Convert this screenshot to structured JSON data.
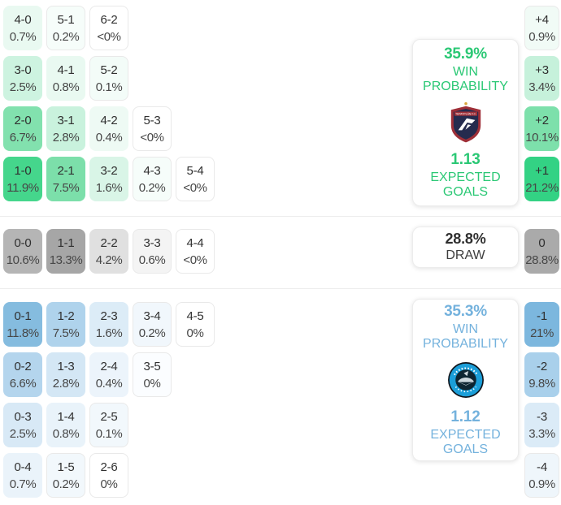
{
  "chart_data": {
    "type": "heatmap",
    "description": "Correct score probability matrix with win probability, expected goals and goal-difference distribution",
    "sections": {
      "home": {
        "win_pct": "35.9%",
        "win_label": "WIN PROBABILITY",
        "xg": "1.13",
        "xg_label": "EXPECTED GOALS",
        "rows": [
          [
            {
              "s": "4-0",
              "p": "0.7%",
              "bg": "#e9f9f1"
            },
            {
              "s": "5-1",
              "p": "0.2%",
              "bg": "#f6fdfa",
              "bd": 1
            },
            {
              "s": "6-2",
              "p": "<0%",
              "bg": "#ffffff",
              "bd": 1
            }
          ],
          [
            {
              "s": "3-0",
              "p": "2.5%",
              "bg": "#cdf3e0"
            },
            {
              "s": "4-1",
              "p": "0.8%",
              "bg": "#e9f9f1"
            },
            {
              "s": "5-2",
              "p": "0.1%",
              "bg": "#f3fcf8",
              "bd": 1
            }
          ],
          [
            {
              "s": "2-0",
              "p": "6.7%",
              "bg": "#82e1ae"
            },
            {
              "s": "3-1",
              "p": "2.8%",
              "bg": "#c9f2dd"
            },
            {
              "s": "4-2",
              "p": "0.4%",
              "bg": "#eefaf4"
            },
            {
              "s": "5-3",
              "p": "<0%",
              "bg": "#ffffff",
              "bd": 1
            }
          ],
          [
            {
              "s": "1-0",
              "p": "11.9%",
              "bg": "#45d68c"
            },
            {
              "s": "2-1",
              "p": "7.5%",
              "bg": "#7cdfaa"
            },
            {
              "s": "3-2",
              "p": "1.6%",
              "bg": "#d9f5e7"
            },
            {
              "s": "4-3",
              "p": "0.2%",
              "bg": "#f6fdfa",
              "bd": 1
            },
            {
              "s": "5-4",
              "p": "<0%",
              "bg": "#ffffff",
              "bd": 1
            }
          ]
        ],
        "diff_rows": [
          [
            {
              "s": "+4",
              "p": "0.9%",
              "bg": "#f1fbf6",
              "bd": 1
            }
          ],
          [
            {
              "s": "+3",
              "p": "3.4%",
              "bg": "#c6f1db"
            }
          ],
          [
            {
              "s": "+2",
              "p": "10.1%",
              "bg": "#7de0ab"
            }
          ],
          [
            {
              "s": "+1",
              "p": "21.2%",
              "bg": "#33d284"
            }
          ]
        ]
      },
      "draw": {
        "pct": "28.8%",
        "label": "DRAW",
        "rows": [
          [
            {
              "s": "0-0",
              "p": "10.6%",
              "bg": "#b5b5b5"
            },
            {
              "s": "1-1",
              "p": "13.3%",
              "bg": "#a6a6a6"
            },
            {
              "s": "2-2",
              "p": "4.2%",
              "bg": "#e0e0e0"
            },
            {
              "s": "3-3",
              "p": "0.6%",
              "bg": "#f4f4f4",
              "bd": 1
            },
            {
              "s": "4-4",
              "p": "<0%",
              "bg": "#ffffff",
              "bd": 1
            }
          ]
        ],
        "diff_rows": [
          [
            {
              "s": "0",
              "p": "28.8%",
              "bg": "#aaaaaa"
            }
          ]
        ]
      },
      "away": {
        "win_pct": "35.3%",
        "win_label": "WIN PROBABILITY",
        "xg": "1.12",
        "xg_label": "EXPECTED GOALS",
        "rows": [
          [
            {
              "s": "0-1",
              "p": "11.8%",
              "bg": "#85bcdf"
            },
            {
              "s": "1-2",
              "p": "7.5%",
              "bg": "#afd3ec"
            },
            {
              "s": "2-3",
              "p": "1.6%",
              "bg": "#dcecf7"
            },
            {
              "s": "3-4",
              "p": "0.2%",
              "bg": "#f1f7fc",
              "bd": 1
            },
            {
              "s": "4-5",
              "p": "0%",
              "bg": "#ffffff",
              "bd": 1
            }
          ],
          [
            {
              "s": "0-2",
              "p": "6.6%",
              "bg": "#b4d5ed"
            },
            {
              "s": "1-3",
              "p": "2.8%",
              "bg": "#d4e7f5"
            },
            {
              "s": "2-4",
              "p": "0.4%",
              "bg": "#ecf4fb"
            },
            {
              "s": "3-5",
              "p": "0%",
              "bg": "#fbfdff",
              "bd": 1
            }
          ],
          [
            {
              "s": "0-3",
              "p": "2.5%",
              "bg": "#d8e9f6"
            },
            {
              "s": "1-4",
              "p": "0.8%",
              "bg": "#e9f3fa"
            },
            {
              "s": "2-5",
              "p": "0.1%",
              "bg": "#f2f8fc",
              "bd": 1
            }
          ],
          [
            {
              "s": "0-4",
              "p": "0.7%",
              "bg": "#eaf3fa"
            },
            {
              "s": "1-5",
              "p": "0.2%",
              "bg": "#f2f8fc",
              "bd": 1
            },
            {
              "s": "2-6",
              "p": "0%",
              "bg": "#ffffff",
              "bd": 1
            }
          ]
        ],
        "diff_rows": [
          [
            {
              "s": "-1",
              "p": "21%",
              "bg": "#7cb7de"
            }
          ],
          [
            {
              "s": "-2",
              "p": "9.8%",
              "bg": "#a9d0eb"
            }
          ],
          [
            {
              "s": "-3",
              "p": "3.3%",
              "bg": "#dbebf7"
            }
          ],
          [
            {
              "s": "-4",
              "p": "0.9%",
              "bg": "#eff6fb",
              "bd": 1
            }
          ]
        ]
      }
    }
  },
  "colors": {
    "home_accent": "#2bc875",
    "away_accent": "#74b2dd",
    "draw_text": "#2f2f2f"
  },
  "icons": {
    "home_crest": "home-team-crest",
    "away_crest": "away-team-crest"
  }
}
